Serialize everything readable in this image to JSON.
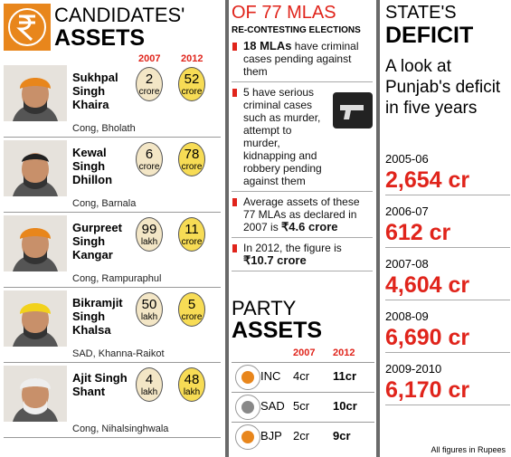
{
  "header": {
    "title_line1": "CANDIDATES'",
    "title_line2": "ASSETS",
    "year_a": "2007",
    "year_b": "2012"
  },
  "candidates": [
    {
      "name": "Sukhpal Singh Khaira",
      "asset_2007": {
        "amount": "2",
        "unit": "crore"
      },
      "asset_2012": {
        "amount": "52",
        "unit": "crore"
      },
      "party_seat": "Cong, Bholath"
    },
    {
      "name": "Kewal Singh Dhillon",
      "asset_2007": {
        "amount": "6",
        "unit": "crore"
      },
      "asset_2012": {
        "amount": "78",
        "unit": "crore"
      },
      "party_seat": "Cong, Barnala"
    },
    {
      "name": "Gurpreet Singh Kangar",
      "asset_2007": {
        "amount": "99",
        "unit": "lakh"
      },
      "asset_2012": {
        "amount": "11",
        "unit": "crore"
      },
      "party_seat": "Cong, Rampuraphul"
    },
    {
      "name": "Bikramjit Singh Khalsa",
      "asset_2007": {
        "amount": "50",
        "unit": "lakh"
      },
      "asset_2012": {
        "amount": "5",
        "unit": "crore"
      },
      "party_seat": "SAD, Khanna-Raikot"
    },
    {
      "name": "Ajit Singh Shant",
      "asset_2007": {
        "amount": "4",
        "unit": "lakh"
      },
      "asset_2012": {
        "amount": "48",
        "unit": "lakh"
      },
      "party_seat": "Cong, Nihalsinghwala"
    }
  ],
  "mlas": {
    "title": "OF 77 MLAS",
    "subtitle": "RE-CONTESTING ELECTIONS",
    "bullets": [
      [
        {
          "text": "18 MLAs",
          "bold": true
        },
        {
          "text": " have criminal cases pending against them",
          "bold": false
        }
      ],
      [
        {
          "text": "5 have serious criminal cases such as murder, attempt to murder, kidnapping and robbery pending against them",
          "bold": false
        }
      ],
      [
        {
          "text": "Average assets of these 77 MLAs as declared in 2007 is ",
          "bold": false
        },
        {
          "text": "₹4.6 crore",
          "bold": true
        }
      ],
      [
        {
          "text": "In 2012, the figure is ",
          "bold": false
        },
        {
          "text": "₹10.7 crore",
          "bold": true
        }
      ]
    ]
  },
  "party_assets": {
    "title_line1": "PARTY",
    "title_line2": "ASSETS",
    "columns": [
      "2007",
      "2012"
    ],
    "rows": [
      [
        "INC",
        "4cr",
        "11cr"
      ],
      [
        "SAD",
        "5cr",
        "10cr"
      ],
      [
        "BJP",
        "2cr",
        "9cr"
      ]
    ]
  },
  "deficit": {
    "title_line1": "STATE'S",
    "title_line2": "DEFICIT",
    "description": "A look at Punjab's deficit in five years",
    "entries": [
      {
        "year": "2005-06",
        "amount": "2,654 cr"
      },
      {
        "year": "2006-07",
        "amount": "612 cr"
      },
      {
        "year": "2007-08",
        "amount": "4,604 cr"
      },
      {
        "year": "2008-09",
        "amount": "6,690 cr"
      },
      {
        "year": "2009-2010",
        "amount": "6,170 cr"
      }
    ],
    "note": "All figures in Rupees"
  }
}
